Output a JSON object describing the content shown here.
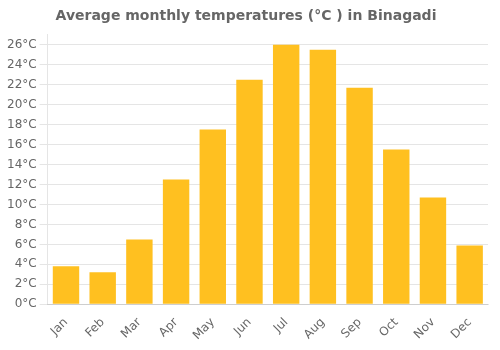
{
  "chart_data": {
    "type": "bar",
    "title": "Average monthly temperatures (°C ) in Binagadi",
    "categories": [
      "Jan",
      "Feb",
      "Mar",
      "Apr",
      "May",
      "Jun",
      "Jul",
      "Aug",
      "Sep",
      "Oct",
      "Nov",
      "Dec"
    ],
    "values": [
      3.8,
      3.2,
      6.5,
      12.5,
      17.5,
      22.5,
      26.0,
      25.5,
      21.7,
      15.5,
      10.7,
      5.9
    ],
    "color": "#FFC020",
    "ylim": [
      0,
      27
    ],
    "yticks": [
      {
        "value": 0,
        "label": "0°C"
      },
      {
        "value": 2,
        "label": "2°C"
      },
      {
        "value": 4,
        "label": "4°C"
      },
      {
        "value": 6,
        "label": "6°C"
      },
      {
        "value": 8,
        "label": "8°C"
      },
      {
        "value": 10,
        "label": "10°C"
      },
      {
        "value": 12,
        "label": "12°C"
      },
      {
        "value": 14,
        "label": "14°C"
      },
      {
        "value": 16,
        "label": "16°C"
      },
      {
        "value": 18,
        "label": "18°C"
      },
      {
        "value": 20,
        "label": "20°C"
      },
      {
        "value": 22,
        "label": "22°C"
      },
      {
        "value": 24,
        "label": "24°C"
      },
      {
        "value": 26,
        "label": "26°C"
      }
    ],
    "grid": true
  }
}
